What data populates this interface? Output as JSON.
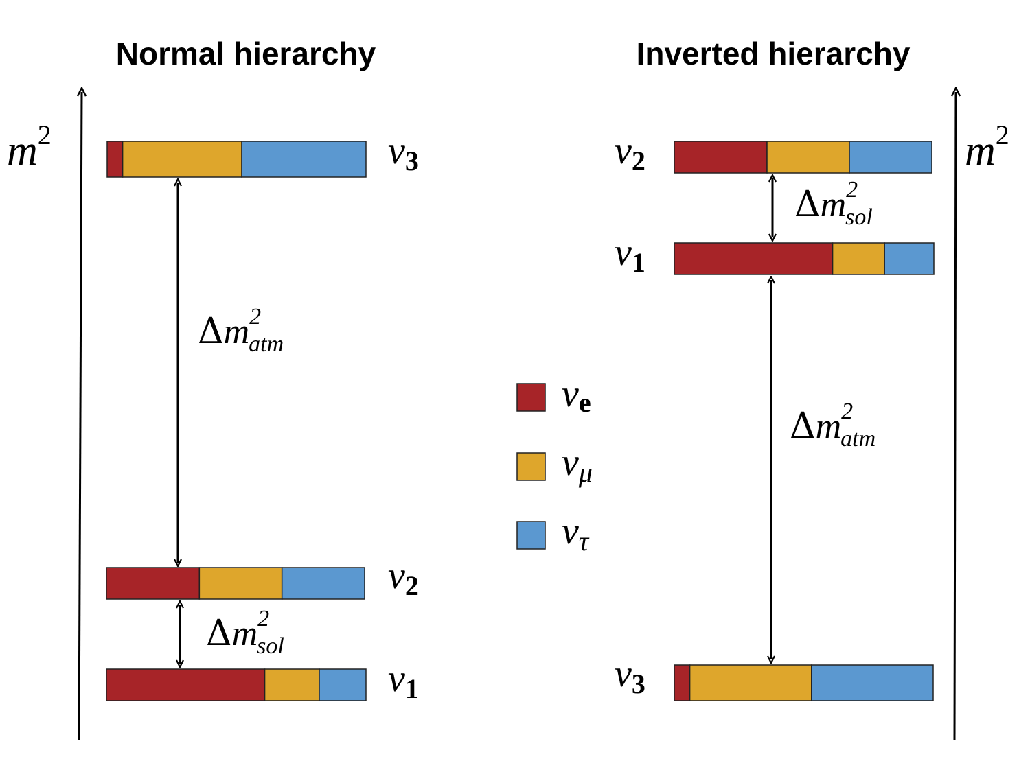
{
  "colors": {
    "nu_e": "#a72428",
    "nu_mu": "#dea62c",
    "nu_tau": "#5b98d0"
  },
  "normal": {
    "title": "Normal hierarchy",
    "axis": {
      "symbol": "m",
      "exponent": "2"
    },
    "levels": [
      {
        "nu": "ν",
        "index": "3",
        "fractions": [
          0.06,
          0.46,
          0.48
        ]
      },
      {
        "nu": "ν",
        "index": "2",
        "fractions": [
          0.36,
          0.32,
          0.32
        ]
      },
      {
        "nu": "ν",
        "index": "1",
        "fractions": [
          0.61,
          0.21,
          0.18
        ]
      }
    ],
    "atm": {
      "delta": "Δ",
      "m": "m",
      "sup": "2",
      "sub": "atm"
    },
    "sol": {
      "delta": "Δ",
      "m": "m",
      "sup": "2",
      "sub": "sol"
    }
  },
  "inverted": {
    "title": "Inverted hierarchy",
    "axis": {
      "symbol": "m",
      "exponent": "2"
    },
    "levels": [
      {
        "nu": "ν",
        "index": "2",
        "fractions": [
          0.36,
          0.32,
          0.32
        ]
      },
      {
        "nu": "ν",
        "index": "1",
        "fractions": [
          0.61,
          0.2,
          0.19
        ]
      },
      {
        "nu": "ν",
        "index": "3",
        "fractions": [
          0.06,
          0.47,
          0.47
        ]
      }
    ],
    "sol": {
      "delta": "Δ",
      "m": "m",
      "sup": "2",
      "sub": "sol"
    },
    "atm": {
      "delta": "Δ",
      "m": "m",
      "sup": "2",
      "sub": "atm"
    }
  },
  "legend": [
    {
      "nu": "ν",
      "sub": "e",
      "flavor": "nu_e"
    },
    {
      "nu": "ν",
      "sub": "μ",
      "flavor": "nu_mu"
    },
    {
      "nu": "ν",
      "sub": "τ",
      "flavor": "nu_tau"
    }
  ]
}
